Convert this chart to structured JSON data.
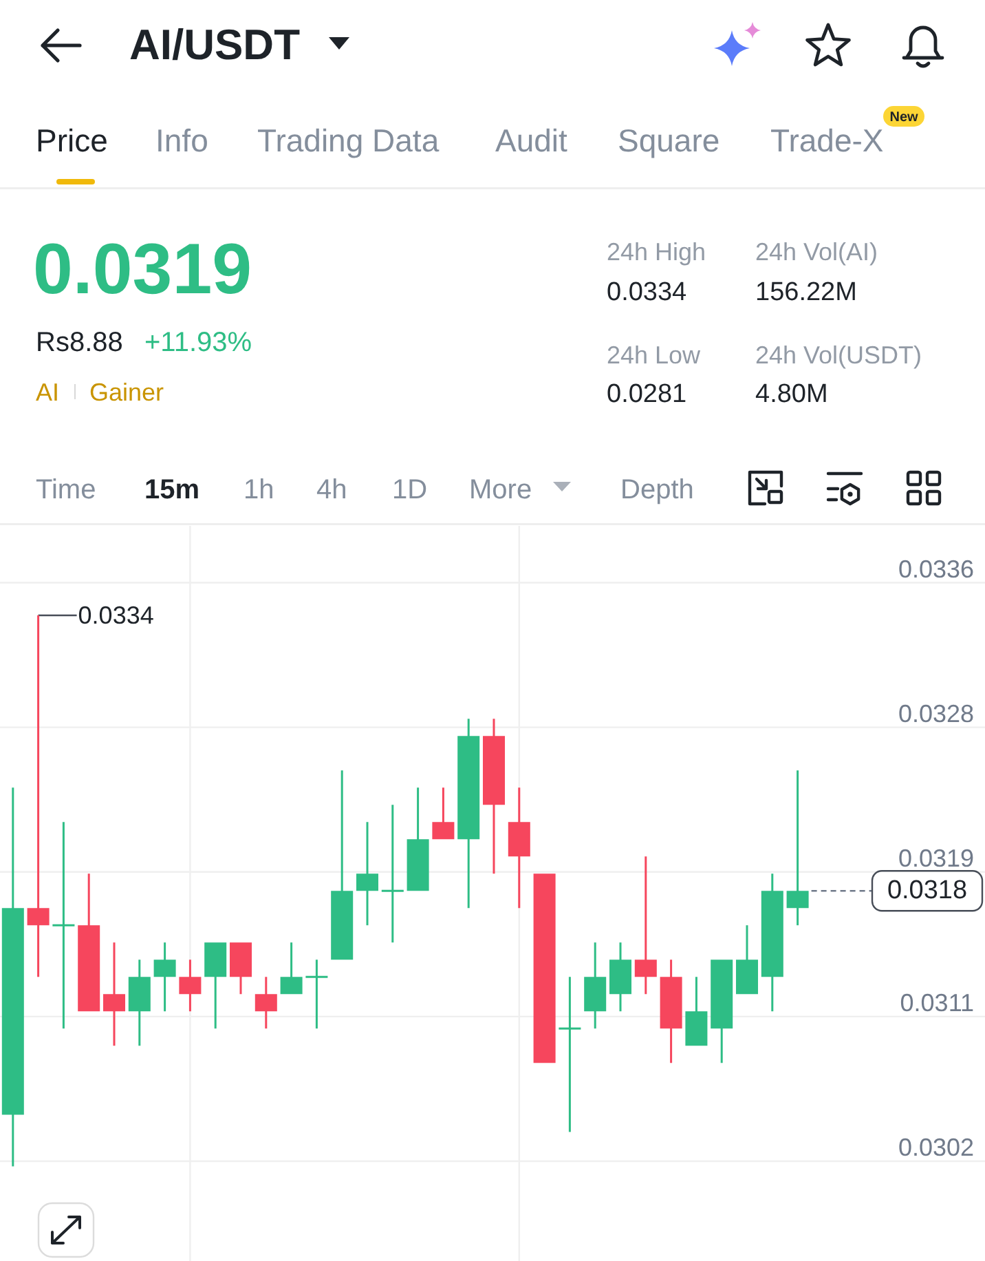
{
  "chart_data": [
    {
      "type": "other",
      "title": "AI/USDT",
      "annotations": [
        "Price",
        "Info",
        "Trading Data",
        "Audit",
        "Square",
        "Trade-X",
        "New",
        "0.0319",
        "Rs8.88",
        "+11.93%",
        "AI",
        "Gainer",
        "24h High",
        "0.0334",
        "24h Vol(AI)",
        "156.22M",
        "24h Low",
        "0.0281",
        "24h Vol(USDT)",
        "4.80M",
        "Time",
        "15m",
        "1h",
        "4h",
        "1D",
        "More",
        "Depth"
      ]
    },
    {
      "type": "candlestick",
      "categories": [
        null,
        null,
        null,
        null,
        null,
        null,
        null,
        null,
        null,
        null,
        null,
        null,
        null,
        null,
        null,
        null,
        null,
        null,
        null,
        null,
        null,
        null,
        null,
        null,
        null,
        null,
        null,
        null,
        null,
        null,
        null,
        null
      ],
      "ohlc": [
        [
          0.0305,
          0.0324,
          0.0302,
          0.0317
        ],
        [
          0.0317,
          0.0334,
          0.0313,
          0.0316
        ],
        [
          0.0316,
          0.0322,
          0.031,
          0.0316
        ],
        [
          0.0316,
          0.0319,
          0.0311,
          0.0311
        ],
        [
          0.0312,
          0.0315,
          0.0309,
          0.0311
        ],
        [
          0.0311,
          0.0314,
          0.0309,
          0.0313
        ],
        [
          0.0313,
          0.0315,
          0.0311,
          0.0314
        ],
        [
          0.0313,
          0.0314,
          0.0311,
          0.0312
        ],
        [
          0.0313,
          0.0315,
          0.031,
          0.0315
        ],
        [
          0.0315,
          0.0315,
          0.0312,
          0.0313
        ],
        [
          0.0312,
          0.0313,
          0.031,
          0.0311
        ],
        [
          0.0312,
          0.0315,
          0.0312,
          0.0313
        ],
        [
          0.0313,
          0.0314,
          0.031,
          0.0313
        ],
        [
          0.0314,
          0.0325,
          0.0314,
          0.0318
        ],
        [
          0.0318,
          0.0322,
          0.0316,
          0.0319
        ],
        [
          0.0318,
          0.0323,
          0.0315,
          0.0318
        ],
        [
          0.0318,
          0.0324,
          0.0318,
          0.0321
        ],
        [
          0.0322,
          0.0324,
          0.0321,
          0.0321
        ],
        [
          0.0321,
          0.0328,
          0.0317,
          0.0327
        ],
        [
          0.0327,
          0.0328,
          0.0319,
          0.0323
        ],
        [
          0.0322,
          0.0324,
          0.0317,
          0.032
        ],
        [
          0.0319,
          0.0319,
          0.0308,
          0.0308
        ],
        [
          0.031,
          0.0313,
          0.0304,
          0.031
        ],
        [
          0.0311,
          0.0315,
          0.031,
          0.0313
        ],
        [
          0.0312,
          0.0315,
          0.0311,
          0.0314
        ],
        [
          0.0314,
          0.032,
          0.0312,
          0.0313
        ],
        [
          0.0313,
          0.0314,
          0.0308,
          0.031
        ],
        [
          0.0309,
          0.0313,
          0.0309,
          0.0311
        ],
        [
          0.031,
          0.0314,
          0.0308,
          0.0314
        ],
        [
          0.0312,
          0.0316,
          0.0312,
          0.0314
        ],
        [
          0.0313,
          0.0319,
          0.0311,
          0.0318
        ],
        [
          0.0317,
          0.0325,
          0.0316,
          0.0318
        ]
      ],
      "colors": [
        "#2ebd85",
        "#f6465d",
        "#2ebd85",
        "#f6465d",
        "#f6465d",
        "#2ebd85",
        "#2ebd85",
        "#f6465d",
        "#2ebd85",
        "#f6465d",
        "#f6465d",
        "#2ebd85",
        "#2ebd85",
        "#2ebd85",
        "#2ebd85",
        "#2ebd85",
        "#2ebd85",
        "#f6465d",
        "#2ebd85",
        "#f6465d",
        "#f6465d",
        "#f6465d",
        "#2ebd85",
        "#2ebd85",
        "#2ebd85",
        "#f6465d",
        "#f6465d",
        "#2ebd85",
        "#2ebd85",
        "#2ebd85",
        "#2ebd85",
        "#2ebd85"
      ],
      "ylim": [
        0.02965,
        0.03392
      ],
      "yticks": [
        {
          "value": 0.03359,
          "label": "0.0336"
        },
        {
          "value": 0.03275,
          "label": "0.0328"
        },
        {
          "value": 0.03191,
          "label": "0.0319"
        },
        {
          "value": 0.03107,
          "label": "0.0311"
        },
        {
          "value": 0.03023,
          "label": "0.0302"
        }
      ],
      "grid": "y",
      "tick_labels": "y",
      "ref_lines": [
        {
          "axis": "y",
          "value": 0.0318,
          "label": "0.0318",
          "line_style": "dashed",
          "color": "#707a8a"
        }
      ],
      "annotations": [
        "0.0334"
      ]
    }
  ]
}
